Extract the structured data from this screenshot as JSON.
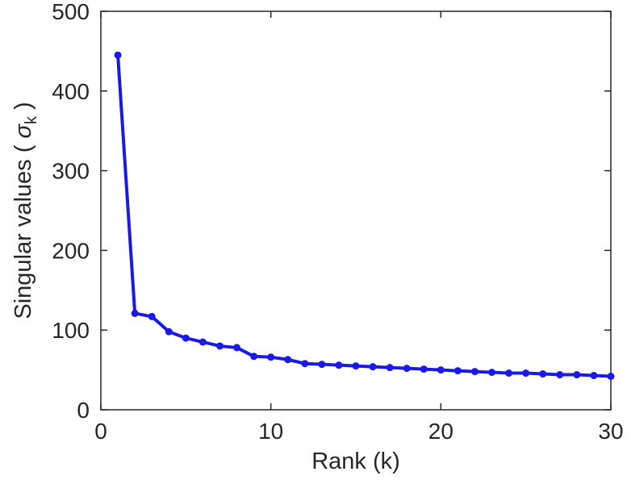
{
  "figure": {
    "background": "#ffffff"
  },
  "chart_data": {
    "type": "line",
    "title": "",
    "xlabel": "Rank (k)",
    "ylabel": {
      "prefix": "Singular values (  ",
      "symbol": "σ",
      "subscript": "k",
      "suffix": " )"
    },
    "x": [
      1,
      2,
      3,
      4,
      5,
      6,
      7,
      8,
      9,
      10,
      11,
      12,
      13,
      14,
      15,
      16,
      17,
      18,
      19,
      20,
      21,
      22,
      23,
      24,
      25,
      26,
      27,
      28,
      29,
      30
    ],
    "values": [
      445,
      121,
      117,
      98,
      90,
      85,
      80,
      78,
      67,
      66,
      63,
      58,
      57,
      56,
      55,
      54,
      53,
      52,
      51,
      50,
      49,
      48,
      47,
      46,
      46,
      45,
      44,
      44,
      43,
      42
    ],
    "xlim": [
      0,
      30
    ],
    "ylim": [
      0,
      500
    ],
    "xticks": [
      0,
      10,
      20,
      30
    ],
    "yticks": [
      0,
      100,
      200,
      300,
      400,
      500
    ],
    "grid": false,
    "legend": null,
    "line_color": "#1a1ae6",
    "marker": "filled-circle",
    "marker_color": "#1a1ae6",
    "axis_color": "#262626"
  }
}
